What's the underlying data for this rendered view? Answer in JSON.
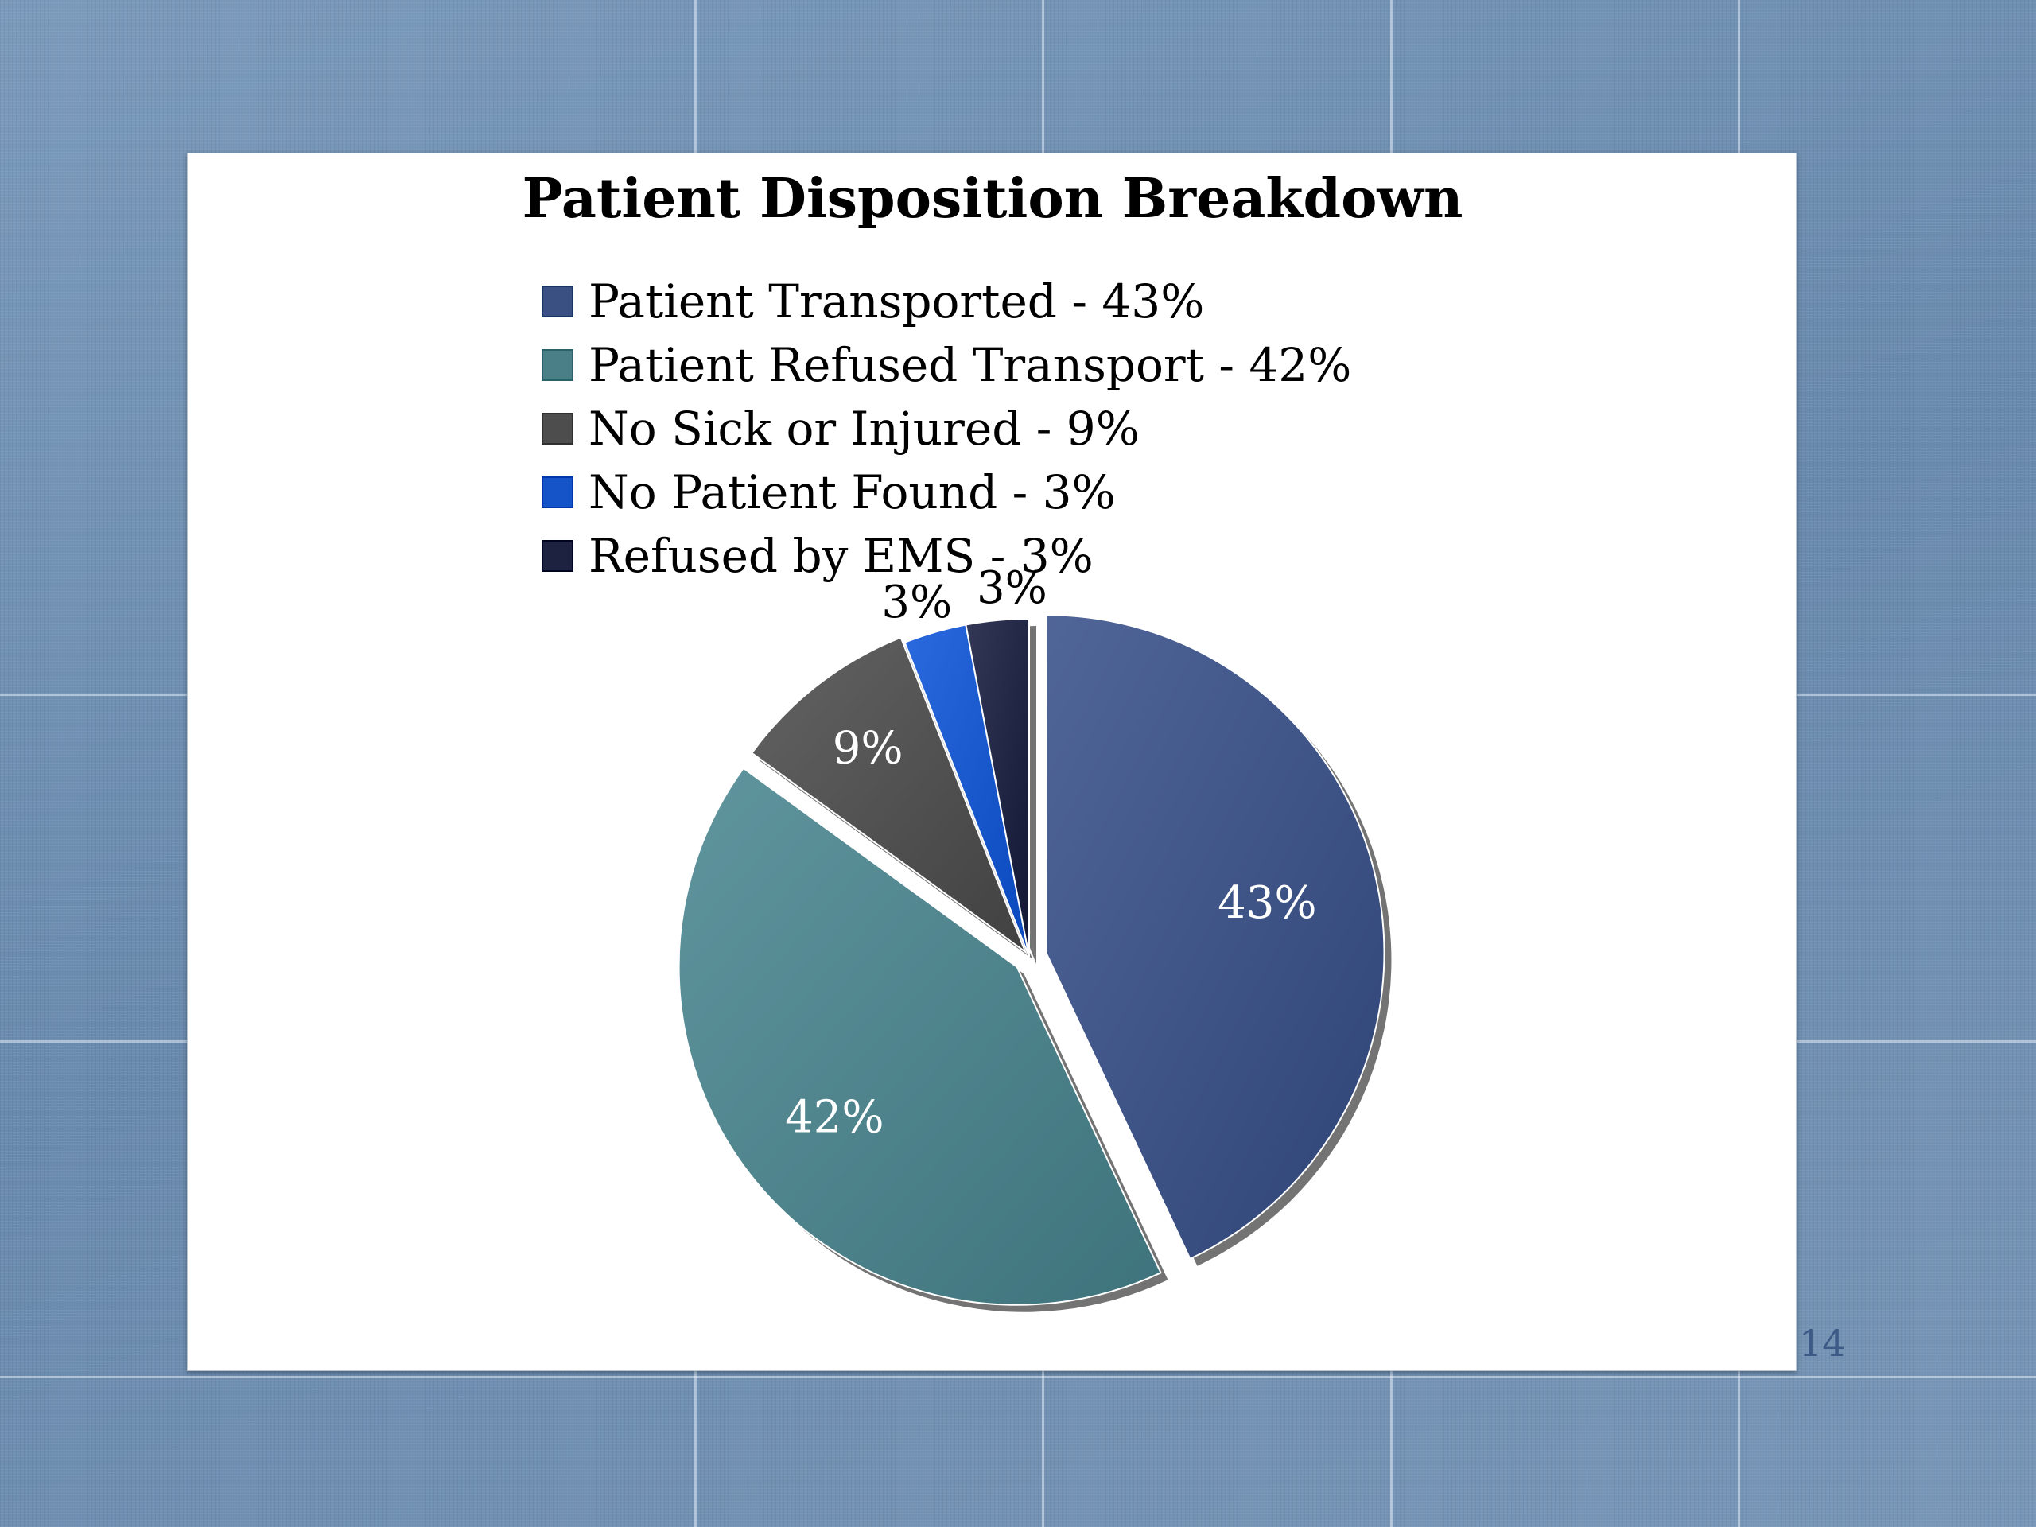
{
  "page_number": "14",
  "chart_data": {
    "type": "pie",
    "title": "Patient Disposition Breakdown",
    "legend_position": "top",
    "categories": [
      "Patient Transported - 43%",
      "Patient Refused Transport -  42%",
      "No Sick or Injured -  9%",
      "No Patient Found  - 3%",
      "Refused by EMS - 3%"
    ],
    "values": [
      43,
      42,
      9,
      3,
      3
    ],
    "data_labels": [
      "43%",
      "42%",
      "9%",
      "3%",
      "3%"
    ],
    "colors": [
      "#3a4f82",
      "#4a7f88",
      "#4d4d4d",
      "#1454c8",
      "#1c2240"
    ],
    "exploded": true
  }
}
